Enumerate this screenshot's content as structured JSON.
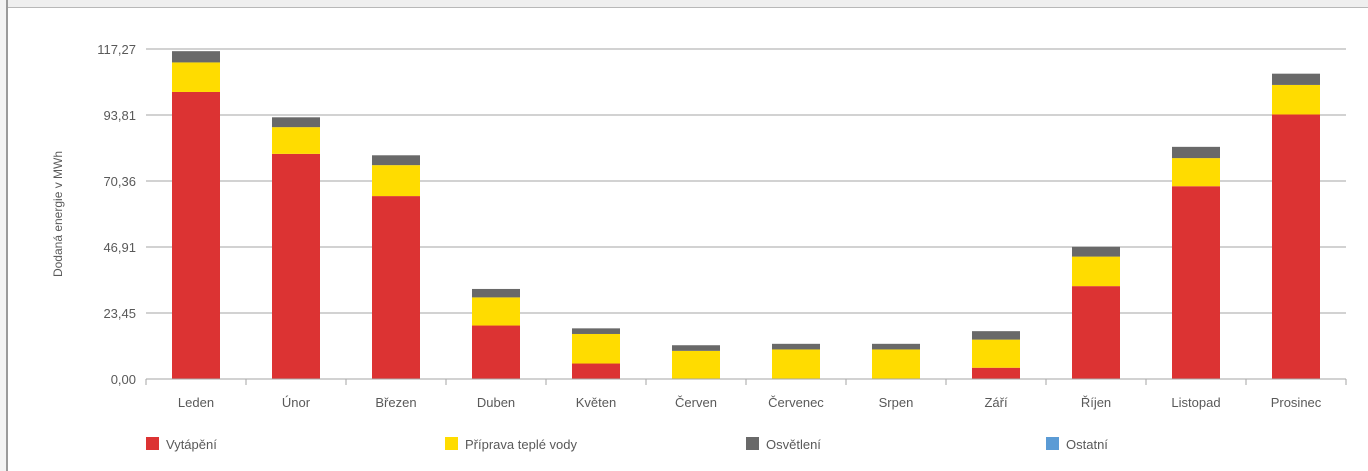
{
  "chart_data": {
    "type": "bar",
    "stacked": true,
    "title": "",
    "xlabel": "",
    "ylabel": "Dodaná energie v MWh",
    "ylim": [
      0,
      117.27
    ],
    "yticks": [
      "0,00",
      "23,45",
      "46,91",
      "70,36",
      "93,81",
      "117,27"
    ],
    "ytick_values": [
      0,
      23.45,
      46.91,
      70.36,
      93.81,
      117.27
    ],
    "grid": true,
    "legend_position": "bottom",
    "categories": [
      "Leden",
      "Únor",
      "Březen",
      "Duben",
      "Květen",
      "Červen",
      "Červenec",
      "Srpen",
      "Září",
      "Říjen",
      "Listopad",
      "Prosinec"
    ],
    "series": [
      {
        "name": "Vytápění",
        "color": "#dc3333",
        "values": [
          102.0,
          80.0,
          65.0,
          19.0,
          5.5,
          0,
          0,
          0,
          4.0,
          33.0,
          68.5,
          94.0
        ]
      },
      {
        "name": "Příprava teplé vody",
        "color": "#ffdc00",
        "values": [
          10.5,
          9.5,
          11.0,
          10.0,
          10.5,
          10.0,
          10.5,
          10.5,
          10.0,
          10.5,
          10.0,
          10.5
        ]
      },
      {
        "name": "Osvětlení",
        "color": "#696969",
        "values": [
          4.0,
          3.5,
          3.5,
          3.0,
          2.0,
          2.0,
          2.0,
          2.0,
          3.0,
          3.5,
          4.0,
          4.0
        ]
      },
      {
        "name": "Ostatní",
        "color": "#5b9bd5",
        "values": [
          0,
          0,
          0,
          0,
          0,
          0,
          0,
          0,
          0,
          0,
          0,
          0
        ]
      }
    ]
  }
}
